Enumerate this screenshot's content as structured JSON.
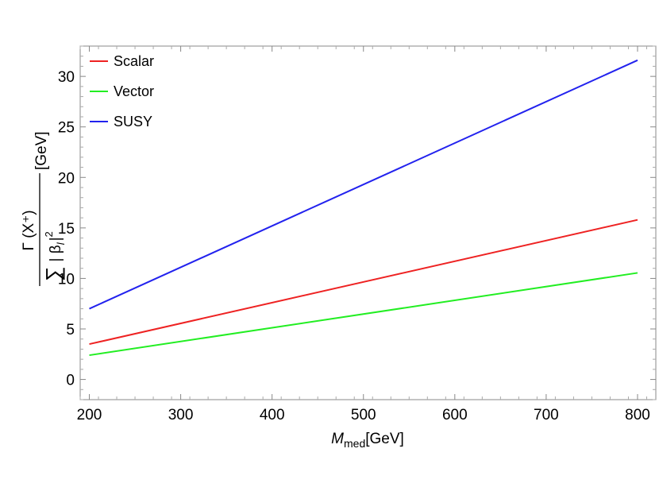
{
  "chart_data": {
    "type": "line",
    "x": [
      200,
      800
    ],
    "series": [
      {
        "name": "Scalar",
        "color": "#ee2222",
        "values": [
          3.5,
          15.8
        ]
      },
      {
        "name": "Vector",
        "color": "#22ee22",
        "values": [
          2.4,
          10.55
        ]
      },
      {
        "name": "SUSY",
        "color": "#2222ee",
        "values": [
          7.0,
          31.6
        ]
      }
    ],
    "xlim": [
      190,
      820
    ],
    "ylim": [
      -2,
      33
    ],
    "xticks": [
      200,
      300,
      400,
      500,
      600,
      700,
      800
    ],
    "yticks": [
      0,
      5,
      10,
      15,
      20,
      25,
      30
    ],
    "xlabel": {
      "symbol": "M",
      "subscript": "med",
      "unit": "[GeV]"
    },
    "ylabel": {
      "numerator": "Γ (X⁺)",
      "sum": "∑",
      "denominator": "| β",
      "denominator_sub": "l",
      "denominator_end": "|",
      "power": "2",
      "unit": "[GeV]"
    },
    "legend_position": "top-left",
    "grid": false
  }
}
